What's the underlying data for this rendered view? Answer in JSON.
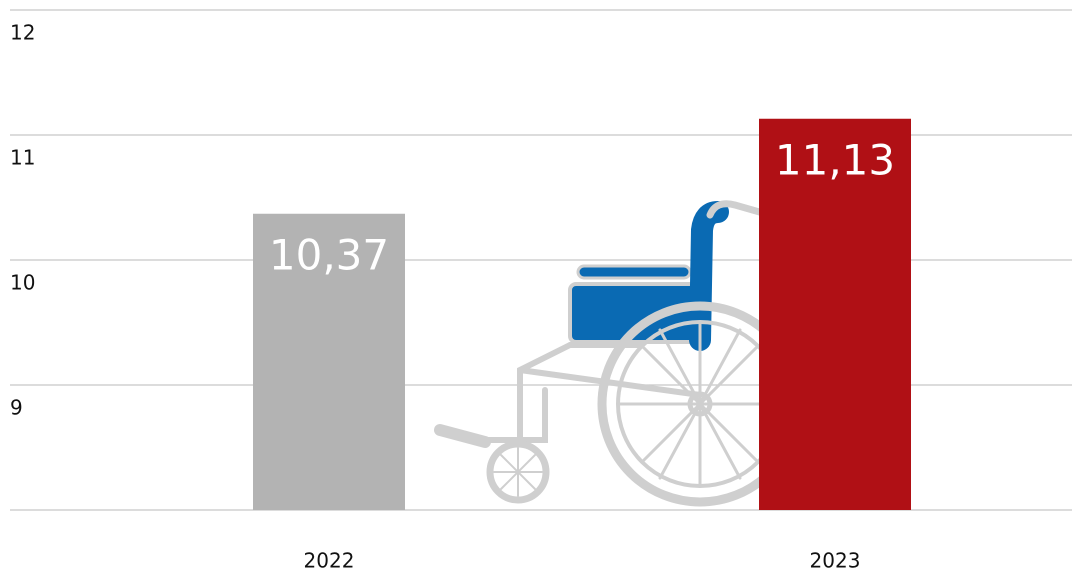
{
  "chart_data": {
    "type": "bar",
    "categories": [
      "2022",
      "2023"
    ],
    "values": [
      10.37,
      11.13
    ],
    "value_labels": [
      "10,37",
      "11,13"
    ],
    "colors": [
      "#b3b3b3",
      "#b01015"
    ],
    "ylim": [
      8,
      12
    ],
    "yticks": [
      9,
      10,
      11,
      12
    ],
    "grid": true
  }
}
